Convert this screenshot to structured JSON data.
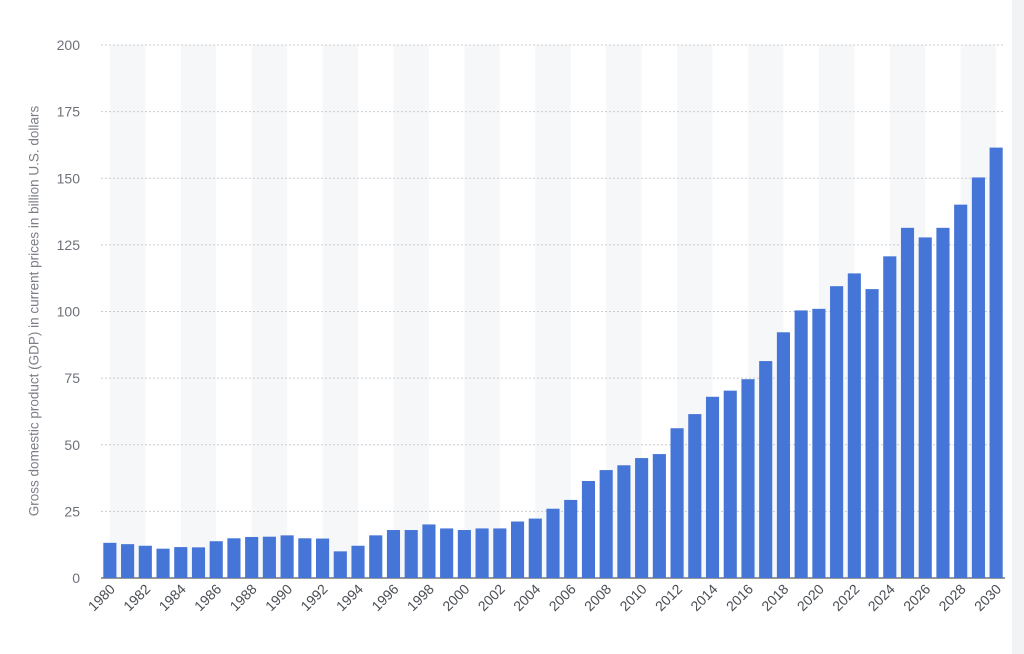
{
  "chart_data": {
    "type": "bar",
    "ylabel": "Gross domestic product (GDP) in current prices in billion U.S. dollars",
    "xlabel": "",
    "ylim": [
      0,
      200
    ],
    "yticks": [
      0,
      25,
      50,
      75,
      100,
      125,
      150,
      175,
      200
    ],
    "grid": true,
    "bar_color": "#4575d6",
    "band_color": "#f6f7f9",
    "categories": [
      "1980",
      "1981",
      "1982",
      "1983",
      "1984",
      "1985",
      "1986",
      "1987",
      "1988",
      "1989",
      "1990",
      "1991",
      "1992",
      "1993",
      "1994",
      "1995",
      "1996",
      "1997",
      "1998",
      "1999",
      "2000",
      "2001",
      "2002",
      "2003",
      "2004",
      "2005",
      "2006",
      "2007",
      "2008",
      "2009",
      "2010",
      "2011",
      "2012",
      "2013",
      "2014",
      "2015",
      "2016",
      "2017",
      "2018",
      "2019",
      "2020",
      "2021",
      "2022",
      "2023",
      "2024",
      "2025",
      "2026",
      "2027",
      "2028",
      "2029",
      "2030"
    ],
    "x_tick_labels": [
      "1980",
      "1982",
      "1984",
      "1986",
      "1988",
      "1990",
      "1992",
      "1994",
      "1996",
      "1998",
      "2000",
      "2002",
      "2004",
      "2006",
      "2008",
      "2010",
      "2012",
      "2014",
      "2016",
      "2018",
      "2020",
      "2022",
      "2024",
      "2026",
      "2028",
      "2030"
    ],
    "values": [
      13.2,
      12.7,
      12.1,
      11.0,
      11.6,
      11.5,
      13.8,
      14.9,
      15.4,
      15.5,
      16.0,
      14.9,
      14.8,
      10.0,
      12.1,
      16.0,
      18.0,
      18.0,
      20.1,
      18.6,
      18.0,
      18.6,
      18.6,
      21.2,
      22.3,
      26.0,
      29.3,
      36.4,
      40.5,
      42.3,
      45.0,
      46.5,
      56.2,
      61.5,
      68.0,
      70.3,
      74.6,
      81.4,
      92.2,
      100.4,
      101.0,
      109.5,
      114.3,
      108.4,
      120.7,
      131.4,
      127.8,
      131.4,
      140.1,
      150.3,
      161.5
    ]
  }
}
